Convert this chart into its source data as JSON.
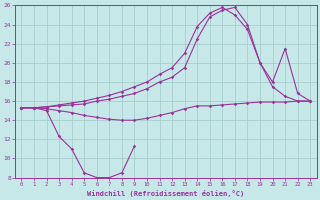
{
  "xlabel": "Windchill (Refroidissement éolien,°C)",
  "background_color": "#c6e8e8",
  "grid_color": "#a0c8c8",
  "line_color": "#993399",
  "x": [
    0,
    1,
    2,
    3,
    4,
    5,
    6,
    7,
    8,
    9,
    10,
    11,
    12,
    13,
    14,
    15,
    16,
    17,
    18,
    19,
    20,
    21,
    22,
    23
  ],
  "line1_x": [
    0,
    1,
    2,
    3,
    4,
    5,
    6,
    7,
    8,
    9
  ],
  "line1_y": [
    15.3,
    15.3,
    15.0,
    12.3,
    11.0,
    8.5,
    8.0,
    8.0,
    8.5,
    11.3
  ],
  "line2": [
    15.3,
    15.3,
    15.2,
    15.0,
    14.8,
    14.5,
    14.3,
    14.1,
    14.0,
    14.0,
    14.2,
    14.5,
    14.8,
    15.2,
    15.5,
    15.5,
    15.6,
    15.7,
    15.8,
    15.9,
    15.9,
    15.9,
    16.0,
    16.0
  ],
  "line3": [
    15.3,
    15.3,
    15.4,
    15.5,
    15.6,
    15.7,
    16.0,
    16.2,
    16.5,
    16.8,
    17.3,
    18.0,
    18.5,
    19.5,
    22.5,
    24.8,
    25.5,
    25.8,
    24.0,
    20.0,
    17.5,
    16.5,
    16.0,
    16.0
  ],
  "line4": [
    15.3,
    15.3,
    15.4,
    15.6,
    15.8,
    16.0,
    16.3,
    16.6,
    17.0,
    17.5,
    18.0,
    18.8,
    19.5,
    21.0,
    23.8,
    25.2,
    25.8,
    25.0,
    23.5,
    20.0,
    18.0,
    21.5,
    16.8,
    16.0
  ],
  "ylim": [
    8,
    26
  ],
  "xlim": [
    -0.5,
    23.5
  ],
  "yticks": [
    8,
    10,
    12,
    14,
    16,
    18,
    20,
    22,
    24,
    26
  ],
  "xticks": [
    0,
    1,
    2,
    3,
    4,
    5,
    6,
    7,
    8,
    9,
    10,
    11,
    12,
    13,
    14,
    15,
    16,
    17,
    18,
    19,
    20,
    21,
    22,
    23
  ]
}
